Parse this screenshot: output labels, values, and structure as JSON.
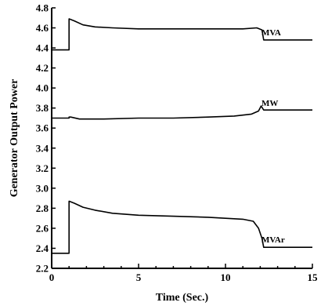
{
  "chart_data": {
    "type": "line",
    "title": "",
    "xlabel": "Time (Sec.)",
    "ylabel": "Generator Output Power",
    "xlim": [
      0,
      15
    ],
    "ylim": [
      2.2,
      4.8
    ],
    "xticks": [
      0,
      5,
      10,
      15
    ],
    "yticks": [
      2.2,
      2.4,
      2.6,
      2.8,
      3.0,
      3.2,
      3.4,
      3.6,
      3.8,
      4.0,
      4.2,
      4.4,
      4.6,
      4.8
    ],
    "grid": false,
    "series": [
      {
        "name": "MVA",
        "x": [
          0,
          1.0,
          1.0,
          1.3,
          1.8,
          2.5,
          3.5,
          5,
          7,
          9,
          11,
          11.8,
          12.1,
          12.2,
          12.5,
          15
        ],
        "y": [
          4.38,
          4.38,
          4.69,
          4.67,
          4.63,
          4.61,
          4.6,
          4.59,
          4.59,
          4.59,
          4.59,
          4.6,
          4.58,
          4.48,
          4.48,
          4.48
        ]
      },
      {
        "name": "MW",
        "x": [
          0,
          1.0,
          1.0,
          1.1,
          1.6,
          3,
          5,
          7,
          9,
          10.5,
          11.5,
          11.9,
          12.05,
          12.2,
          12.5,
          15
        ],
        "y": [
          3.7,
          3.7,
          3.71,
          3.71,
          3.69,
          3.69,
          3.7,
          3.7,
          3.71,
          3.72,
          3.74,
          3.77,
          3.82,
          3.78,
          3.78,
          3.78
        ]
      },
      {
        "name": "MVAr",
        "x": [
          0,
          1.0,
          1.0,
          1.3,
          1.8,
          2.5,
          3.5,
          5,
          7,
          9,
          11,
          11.6,
          11.9,
          12.1,
          12.2,
          12.5,
          15
        ],
        "y": [
          2.35,
          2.35,
          2.87,
          2.85,
          2.81,
          2.78,
          2.75,
          2.73,
          2.72,
          2.71,
          2.69,
          2.67,
          2.6,
          2.5,
          2.41,
          2.41,
          2.41
        ]
      }
    ]
  }
}
